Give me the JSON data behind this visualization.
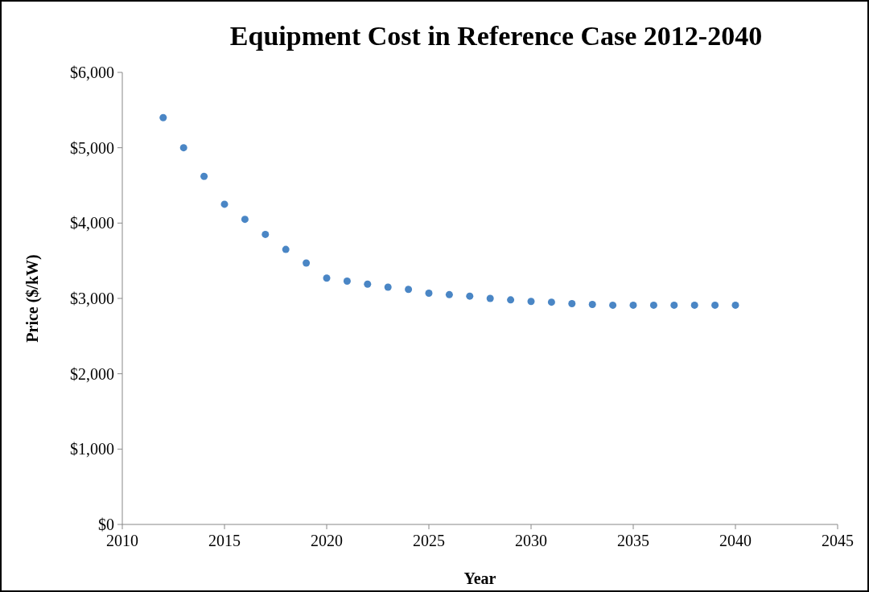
{
  "chart_data": {
    "type": "scatter",
    "title": "Equipment Cost in Reference Case 2012-2040",
    "xlabel": "Year",
    "ylabel": "Price ($/kW)",
    "x": [
      2012,
      2013,
      2014,
      2015,
      2016,
      2017,
      2018,
      2019,
      2020,
      2021,
      2022,
      2023,
      2024,
      2025,
      2026,
      2027,
      2028,
      2029,
      2030,
      2031,
      2032,
      2033,
      2034,
      2035,
      2036,
      2037,
      2038,
      2039,
      2040
    ],
    "series": [
      {
        "color": "#4a86c5",
        "values": [
          5400,
          5000,
          4620,
          4250,
          4050,
          3850,
          3650,
          3470,
          3270,
          3230,
          3190,
          3150,
          3120,
          3070,
          3050,
          3030,
          3000,
          2980,
          2960,
          2950,
          2930,
          2920,
          2910,
          2910,
          2910,
          2910,
          2910,
          2910,
          2910
        ]
      }
    ],
    "xlim": [
      2010,
      2045
    ],
    "xticks": [
      2010,
      2015,
      2020,
      2025,
      2030,
      2035,
      2040,
      2045
    ],
    "ylim": [
      0,
      6000
    ],
    "yticks": [
      {
        "value": 0,
        "label": "$0"
      },
      {
        "value": 1000,
        "label": "$1,000"
      },
      {
        "value": 2000,
        "label": "$2,000"
      },
      {
        "value": 3000,
        "label": "$3,000"
      },
      {
        "value": 4000,
        "label": "$4,000"
      },
      {
        "value": 5000,
        "label": "$5,000"
      },
      {
        "value": 6000,
        "label": "$6,000"
      }
    ],
    "marker": "circle"
  }
}
